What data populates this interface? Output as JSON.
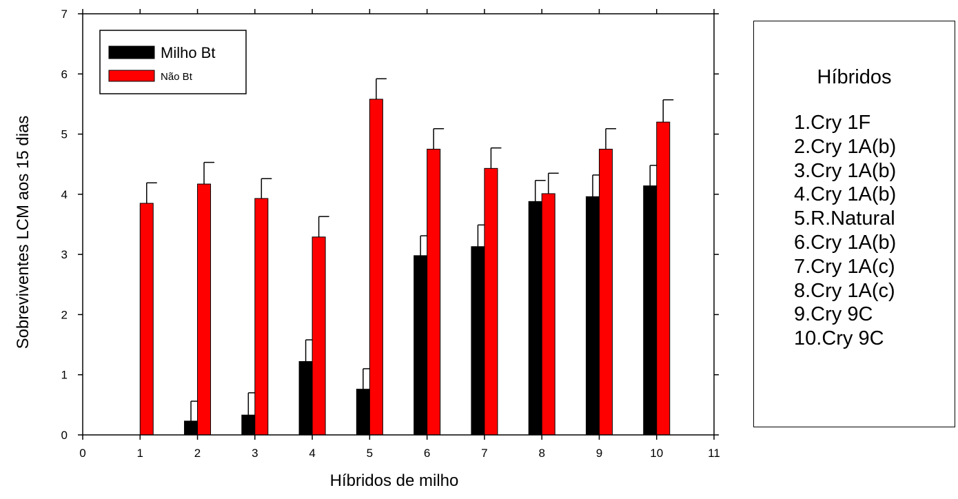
{
  "chart_data": {
    "type": "bar",
    "xlabel": "Híbridos de milho",
    "ylabel": "Sobreviventes LCM aos 15 dias",
    "xlim": [
      0,
      11
    ],
    "ylim": [
      0,
      7
    ],
    "x_ticks": [
      0,
      1,
      2,
      3,
      4,
      5,
      6,
      7,
      8,
      9,
      10,
      11
    ],
    "y_ticks": [
      0,
      1,
      2,
      3,
      4,
      5,
      6,
      7
    ],
    "categories": [
      1,
      2,
      3,
      4,
      5,
      6,
      7,
      8,
      9,
      10
    ],
    "error_bars": "upper",
    "grid": false,
    "legend_position": "top-left",
    "series": [
      {
        "name": "Milho Bt",
        "color": "#000000",
        "values": [
          0,
          0.23,
          0.33,
          1.22,
          0.76,
          2.98,
          3.13,
          3.88,
          3.96,
          4.14
        ],
        "errors": [
          0,
          0.33,
          0.37,
          0.36,
          0.34,
          0.33,
          0.36,
          0.35,
          0.36,
          0.34
        ]
      },
      {
        "name": "Não Bt",
        "color": "#ff0000",
        "values": [
          3.85,
          4.17,
          3.93,
          3.29,
          5.58,
          4.75,
          4.43,
          4.01,
          4.75,
          5.2
        ],
        "errors": [
          0.34,
          0.36,
          0.33,
          0.34,
          0.34,
          0.34,
          0.34,
          0.34,
          0.34,
          0.37
        ]
      }
    ]
  },
  "info_box": {
    "title": "Híbridos",
    "items": [
      "1.Cry 1F",
      "2.Cry 1A(b)",
      "3.Cry 1A(b)",
      "4.Cry 1A(b)",
      "5.R.Natural",
      "6.Cry 1A(b)",
      "7.Cry 1A(c)",
      "8.Cry 1A(c)",
      "9.Cry 9C",
      "10.Cry 9C"
    ]
  }
}
